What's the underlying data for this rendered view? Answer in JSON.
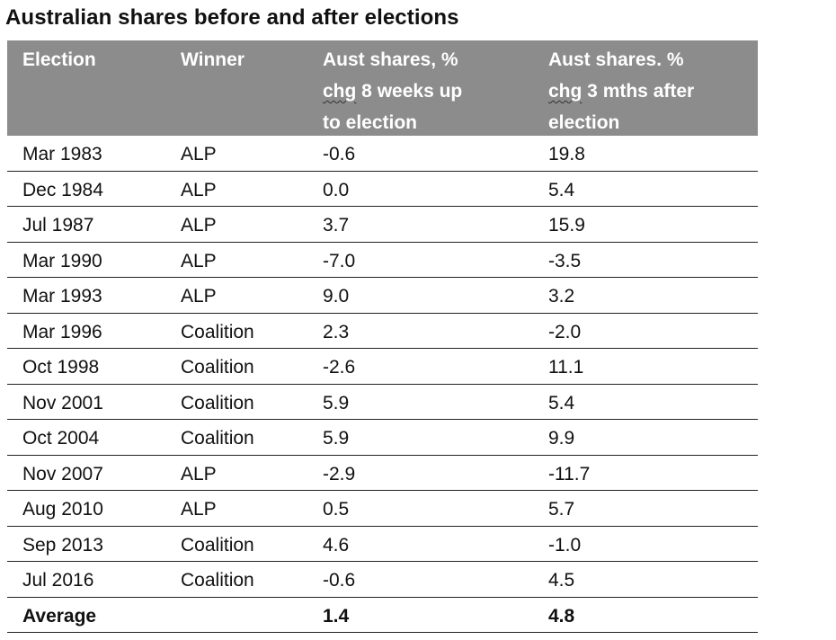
{
  "title": "Australian shares before and after elections",
  "header": {
    "col1": "Election",
    "col2": "Winner",
    "col3_word": "chg",
    "col3_rest_line1": "Aust shares, %",
    "col3_rest_line2": " 8 weeks up",
    "col3_rest_line3": "to election",
    "col4_line1": "Aust shares. %",
    "col4_word": "chg",
    "col4_rest_line2": " 3 mths after",
    "col4_rest_line3": "election"
  },
  "rows": [
    {
      "election": "Mar 1983",
      "winner": "ALP",
      "before": "-0.6",
      "after": "19.8"
    },
    {
      "election": "Dec 1984",
      "winner": "ALP",
      "before": "0.0",
      "after": "5.4"
    },
    {
      "election": "Jul 1987",
      "winner": "ALP",
      "before": "3.7",
      "after": "15.9"
    },
    {
      "election": "Mar 1990",
      "winner": "ALP",
      "before": "-7.0",
      "after": "-3.5"
    },
    {
      "election": "Mar 1993",
      "winner": "ALP",
      "before": "9.0",
      "after": "3.2"
    },
    {
      "election": "Mar 1996",
      "winner": "Coalition",
      "before": "2.3",
      "after": "-2.0"
    },
    {
      "election": "Oct 1998",
      "winner": "Coalition",
      "before": "-2.6",
      "after": "11.1"
    },
    {
      "election": "Nov 2001",
      "winner": "Coalition",
      "before": "5.9",
      "after": "5.4"
    },
    {
      "election": "Oct 2004",
      "winner": "Coalition",
      "before": "5.9",
      "after": "9.9"
    },
    {
      "election": "Nov 2007",
      "winner": "ALP",
      "before": "-2.9",
      "after": "-11.7"
    },
    {
      "election": "Aug 2010",
      "winner": "ALP",
      "before": "0.5",
      "after": "5.7"
    },
    {
      "election": "Sep 2013",
      "winner": "Coalition",
      "before": "4.6",
      "after": "-1.0"
    },
    {
      "election": "Jul 2016",
      "winner": "Coalition",
      "before": "-0.6",
      "after": "4.5"
    }
  ],
  "average": {
    "label": "Average",
    "winner": "",
    "before": "1.4",
    "after": "4.8"
  }
}
